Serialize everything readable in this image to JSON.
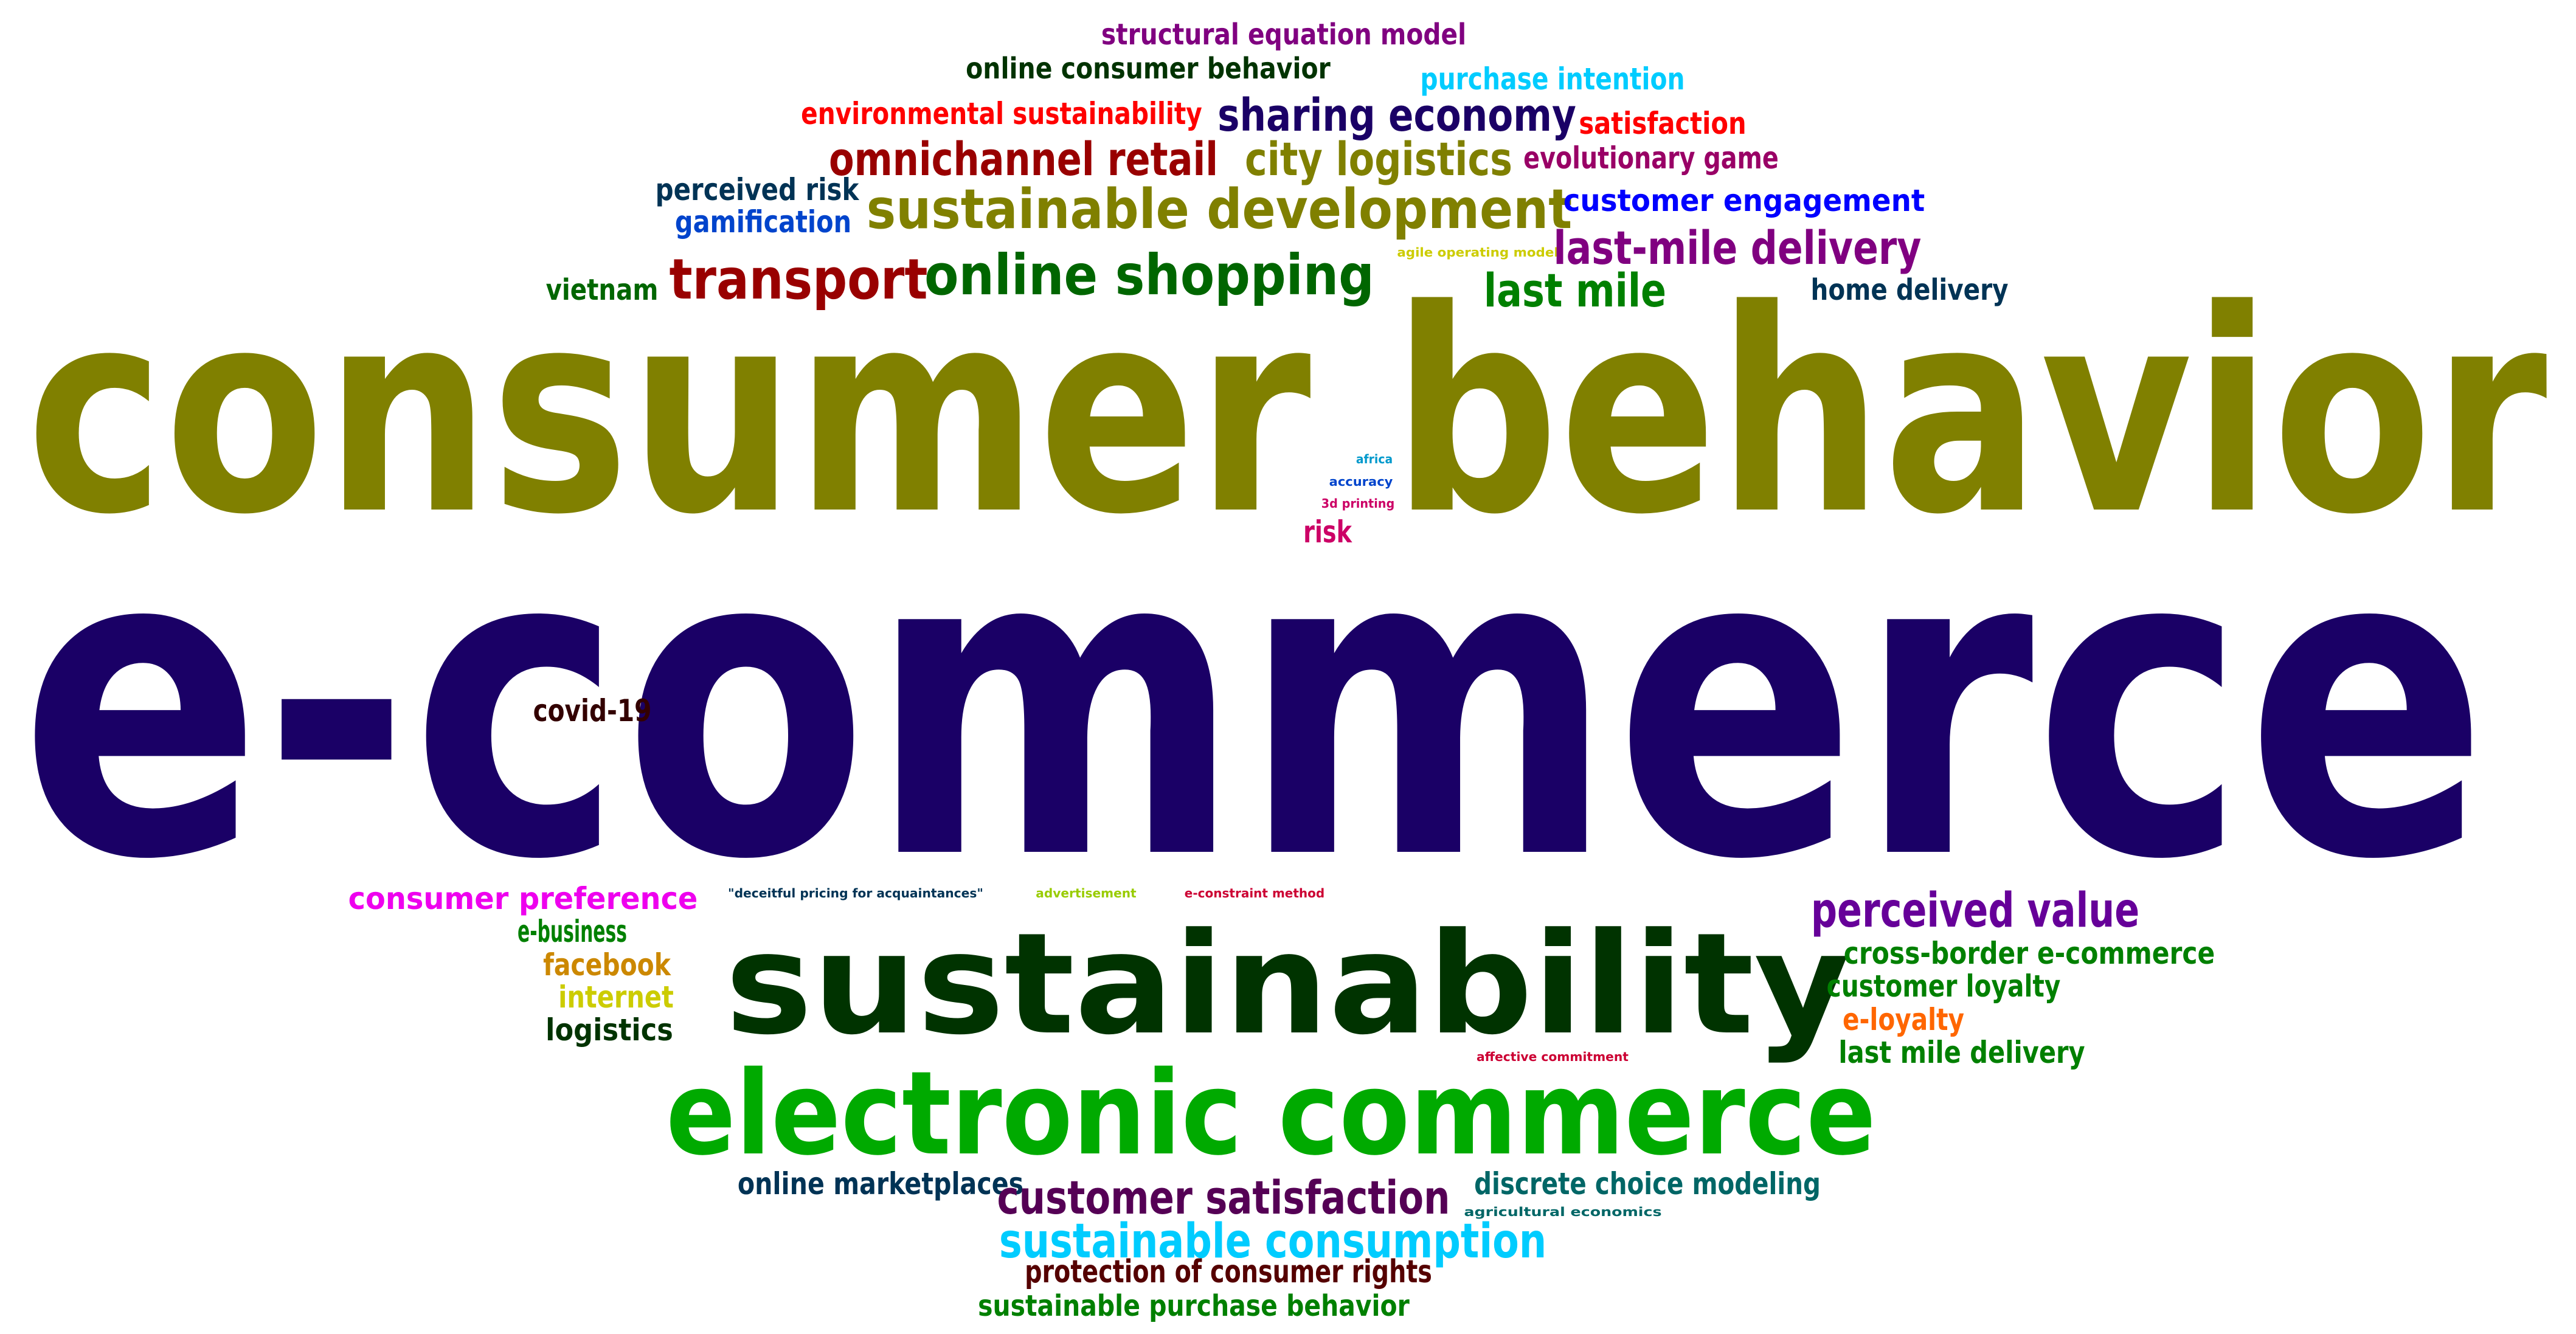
{
  "words": [
    {
      "text": "structural equation model",
      "color": "#800080"
    },
    {
      "text": "online consumer behavior",
      "color": "#003300"
    },
    {
      "text": "purchase intention",
      "color": "#00ccff"
    },
    {
      "text": "environmental sustainability",
      "color": "#ff0000"
    },
    {
      "text": "sharing economy",
      "color": "#1a0066"
    },
    {
      "text": "satisfaction",
      "color": "#ff0000"
    },
    {
      "text": "omnichannel retail",
      "color": "#990000"
    },
    {
      "text": "city logistics",
      "color": "#808000"
    },
    {
      "text": "evolutionary game",
      "color": "#990066"
    },
    {
      "text": "perceived risk",
      "color": "#003355"
    },
    {
      "text": "gamification",
      "color": "#0044cc"
    },
    {
      "text": "sustainable development",
      "color": "#808000"
    },
    {
      "text": "customer engagement",
      "color": "#0000ff"
    },
    {
      "text": "agile operating model",
      "color": "#cccc00"
    },
    {
      "text": "last-mile delivery",
      "color": "#800080"
    },
    {
      "text": "transport",
      "color": "#990000"
    },
    {
      "text": "online shopping",
      "color": "#006600"
    },
    {
      "text": "vietnam",
      "color": "#006600"
    },
    {
      "text": "last mile",
      "color": "#008000"
    },
    {
      "text": "home delivery",
      "color": "#003355"
    },
    {
      "text": "consumer behavior",
      "color": "#808000"
    },
    {
      "text": "africa",
      "color": "#0099cc"
    },
    {
      "text": "accuracy",
      "color": "#0044cc"
    },
    {
      "text": "3d printing",
      "color": "#cc0066"
    },
    {
      "text": "risk",
      "color": "#cc0066"
    },
    {
      "text": "e-commerce",
      "color": "#1a0066"
    },
    {
      "text": "covid-19",
      "color": "#330000"
    },
    {
      "text": "consumer preference",
      "color": "#ee00ee"
    },
    {
      "text": "\"deceitful pricing for acquaintances\"",
      "color": "#003355"
    },
    {
      "text": "advertisement",
      "color": "#99cc00"
    },
    {
      "text": "e-constraint method",
      "color": "#cc0033"
    },
    {
      "text": "perceived value",
      "color": "#660099"
    },
    {
      "text": "e-business",
      "color": "#008000"
    },
    {
      "text": "sustainability",
      "color": "#003300"
    },
    {
      "text": "cross-border e-commerce",
      "color": "#008000"
    },
    {
      "text": "facebook",
      "color": "#cc8800"
    },
    {
      "text": "customer loyalty",
      "color": "#008000"
    },
    {
      "text": "internet",
      "color": "#cccc00"
    },
    {
      "text": "e-loyalty",
      "color": "#ff6600"
    },
    {
      "text": "logistics",
      "color": "#003300"
    },
    {
      "text": "affective commitment",
      "color": "#cc0033"
    },
    {
      "text": "last mile delivery",
      "color": "#008000"
    },
    {
      "text": "electronic commerce",
      "color": "#00aa00"
    },
    {
      "text": "online marketplaces",
      "color": "#003355"
    },
    {
      "text": "customer satisfaction",
      "color": "#550055"
    },
    {
      "text": "discrete choice modeling",
      "color": "#006666"
    },
    {
      "text": "agricultural economics",
      "color": "#006666"
    },
    {
      "text": "sustainable consumption",
      "color": "#00ccff"
    },
    {
      "text": "protection of consumer rights",
      "color": "#550000"
    },
    {
      "text": "sustainable purchase behavior",
      "color": "#008000"
    }
  ]
}
